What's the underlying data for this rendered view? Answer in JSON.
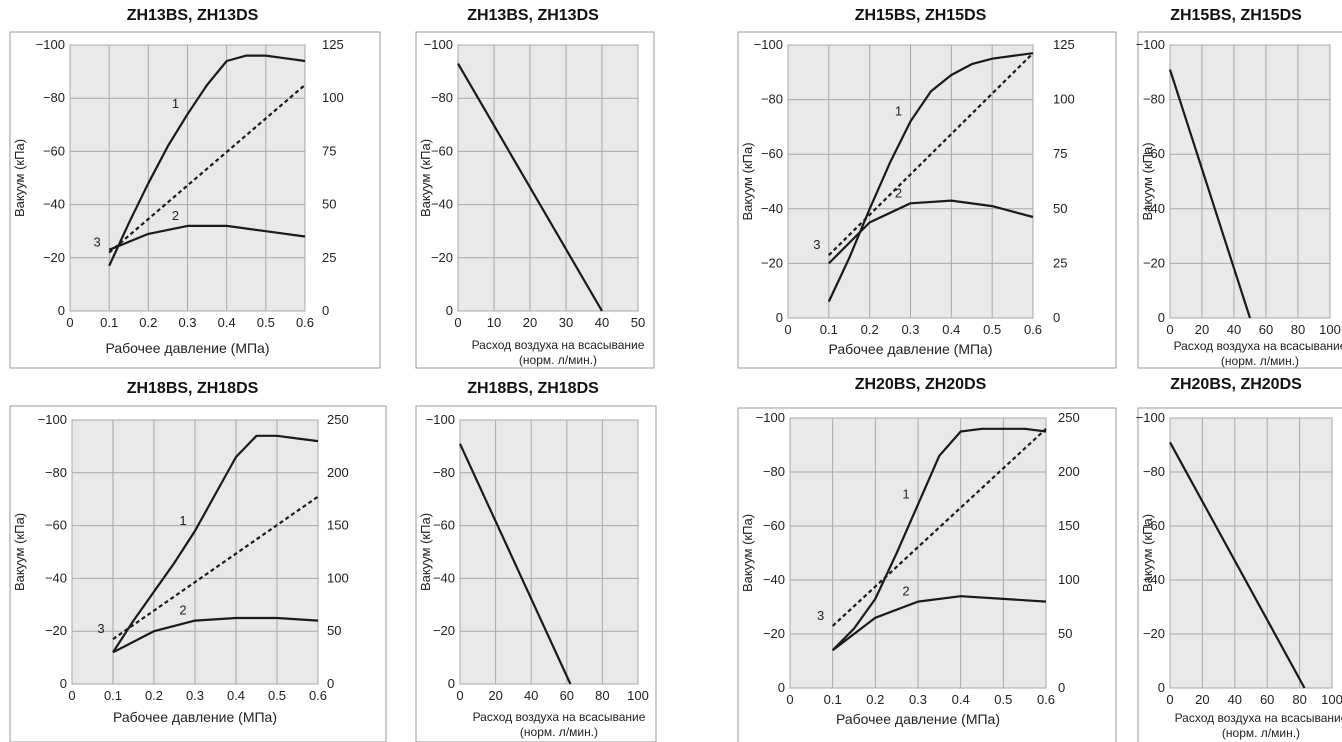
{
  "chart_data": [
    {
      "type": "line",
      "title": "ZH13BS, ZH13DS",
      "xlabel": "Рабочее давление (МПа)",
      "ylabel": "Вакуум (кПа)",
      "xlim": [
        0,
        0.6
      ],
      "x_ticks": [
        "0",
        "0.1",
        "0.2",
        "0.3",
        "0.4",
        "0.5",
        "0.6"
      ],
      "ylim": [
        0,
        -100
      ],
      "y_ticks": [
        "0",
        "−20",
        "−40",
        "−60",
        "−80",
        "−100"
      ],
      "y2lim": [
        0,
        125
      ],
      "y2_ticks": [
        "0",
        "25",
        "50",
        "75",
        "100",
        "125"
      ],
      "grid": true,
      "series": [
        {
          "name": "1",
          "style": "solid",
          "axis": "left",
          "x": [
            0.1,
            0.15,
            0.2,
            0.25,
            0.3,
            0.35,
            0.4,
            0.45,
            0.5,
            0.55,
            0.6
          ],
          "y": [
            -17,
            -33,
            -48,
            -62,
            -74,
            -85,
            -94,
            -96,
            -96,
            -95,
            -94
          ]
        },
        {
          "name": "2",
          "style": "solid",
          "axis": "left",
          "x": [
            0.1,
            0.2,
            0.3,
            0.4,
            0.5,
            0.6
          ],
          "y": [
            -23,
            -29,
            -32,
            -32,
            -30,
            -28
          ]
        },
        {
          "name": "3",
          "style": "dashed",
          "axis": "left",
          "x": [
            0.1,
            0.6
          ],
          "y": [
            -22,
            -85
          ]
        }
      ]
    },
    {
      "type": "line",
      "title": "ZH13BS, ZH13DS",
      "xlabel": "Расход воздуха на всасывание",
      "xlabel2": "(норм. л/мин.)",
      "ylabel": "Вакуум (кПа)",
      "xlim": [
        0,
        50
      ],
      "x_ticks": [
        "0",
        "10",
        "20",
        "30",
        "40",
        "50"
      ],
      "ylim": [
        0,
        -100
      ],
      "y_ticks": [
        "0",
        "−20",
        "−40",
        "−60",
        "−80",
        "−100"
      ],
      "grid": true,
      "series": [
        {
          "style": "solid",
          "x": [
            0,
            40
          ],
          "y": [
            -93,
            0
          ]
        }
      ]
    },
    {
      "type": "line",
      "title": "ZH15BS, ZH15DS",
      "xlabel": "Рабочее давление (МПа)",
      "ylabel": "Вакуум (кПа)",
      "xlim": [
        0,
        0.6
      ],
      "x_ticks": [
        "0",
        "0.1",
        "0.2",
        "0.3",
        "0.4",
        "0.5",
        "0.6"
      ],
      "ylim": [
        0,
        -100
      ],
      "y_ticks": [
        "0",
        "−20",
        "−40",
        "−60",
        "−80",
        "−100"
      ],
      "y2lim": [
        0,
        125
      ],
      "y2_ticks": [
        "0",
        "25",
        "50",
        "75",
        "100",
        "125"
      ],
      "grid": true,
      "series": [
        {
          "name": "1",
          "style": "solid",
          "axis": "left",
          "x": [
            0.1,
            0.15,
            0.2,
            0.25,
            0.3,
            0.35,
            0.4,
            0.45,
            0.5,
            0.55,
            0.6
          ],
          "y": [
            -6,
            -22,
            -40,
            -57,
            -72,
            -83,
            -89,
            -93,
            -95,
            -96,
            -97
          ]
        },
        {
          "name": "2",
          "style": "solid",
          "axis": "left",
          "x": [
            0.1,
            0.2,
            0.3,
            0.4,
            0.5,
            0.6
          ],
          "y": [
            -20,
            -35,
            -42,
            -43,
            -41,
            -37
          ]
        },
        {
          "name": "3",
          "style": "dashed",
          "axis": "left",
          "x": [
            0.1,
            0.6
          ],
          "y": [
            -23,
            -97
          ]
        }
      ]
    },
    {
      "type": "line",
      "title": "ZH15BS, ZH15DS",
      "xlabel": "Расход воздуха на всасывание",
      "xlabel2": "(норм. л/мин.)",
      "ylabel": "Вакуум (кПа)",
      "xlim": [
        0,
        100
      ],
      "x_ticks": [
        "0",
        "20",
        "40",
        "60",
        "80",
        "100"
      ],
      "ylim": [
        0,
        -100
      ],
      "y_ticks": [
        "0",
        "−20",
        "−40",
        "−60",
        "−80",
        "−100"
      ],
      "grid": true,
      "series": [
        {
          "style": "solid",
          "x": [
            0,
            50
          ],
          "y": [
            -91,
            0
          ]
        }
      ]
    },
    {
      "type": "line",
      "title": "ZH18BS, ZH18DS",
      "xlabel": "Рабочее давление (МПа)",
      "ylabel": "Вакуум (кПа)",
      "xlim": [
        0,
        0.6
      ],
      "x_ticks": [
        "0",
        "0.1",
        "0.2",
        "0.3",
        "0.4",
        "0.5",
        "0.6"
      ],
      "ylim": [
        0,
        -100
      ],
      "y_ticks": [
        "0",
        "−20",
        "−40",
        "−60",
        "−80",
        "−100"
      ],
      "y2lim": [
        0,
        250
      ],
      "y2_ticks": [
        "0",
        "50",
        "100",
        "150",
        "200",
        "250"
      ],
      "grid": true,
      "series": [
        {
          "name": "1",
          "style": "solid",
          "axis": "left",
          "x": [
            0.1,
            0.15,
            0.2,
            0.25,
            0.3,
            0.35,
            0.4,
            0.45,
            0.5,
            0.55,
            0.6
          ],
          "y": [
            -12,
            -24,
            -35,
            -46,
            -58,
            -72,
            -86,
            -94,
            -94,
            -93,
            -92
          ]
        },
        {
          "name": "2",
          "style": "solid",
          "axis": "left",
          "x": [
            0.1,
            0.2,
            0.3,
            0.4,
            0.5,
            0.6
          ],
          "y": [
            -12,
            -20,
            -24,
            -25,
            -25,
            -24
          ]
        },
        {
          "name": "3",
          "style": "dashed",
          "axis": "left",
          "x": [
            0.1,
            0.6
          ],
          "y": [
            -17,
            -71
          ]
        }
      ]
    },
    {
      "type": "line",
      "title": "ZH18BS, ZH18DS",
      "xlabel": "Расход воздуха на всасывание",
      "xlabel2": "(норм. л/мин.)",
      "ylabel": "Вакуум (кПа)",
      "xlim": [
        0,
        100
      ],
      "x_ticks": [
        "0",
        "20",
        "40",
        "60",
        "80",
        "100"
      ],
      "ylim": [
        0,
        -100
      ],
      "y_ticks": [
        "0",
        "−20",
        "−40",
        "−60",
        "−80",
        "−100"
      ],
      "grid": true,
      "series": [
        {
          "style": "solid",
          "x": [
            0,
            62
          ],
          "y": [
            -91,
            0
          ]
        }
      ]
    },
    {
      "type": "line",
      "title": "ZH20BS, ZH20DS",
      "xlabel": "Рабочее давление (МПа)",
      "ylabel": "Вакуум (кПа)",
      "xlim": [
        0,
        0.6
      ],
      "x_ticks": [
        "0",
        "0.1",
        "0.2",
        "0.3",
        "0.4",
        "0.5",
        "0.6"
      ],
      "ylim": [
        0,
        -100
      ],
      "y_ticks": [
        "0",
        "−20",
        "−40",
        "−60",
        "−80",
        "−100"
      ],
      "y2lim": [
        0,
        250
      ],
      "y2_ticks": [
        "0",
        "50",
        "100",
        "150",
        "200",
        "250"
      ],
      "grid": true,
      "series": [
        {
          "name": "1",
          "style": "solid",
          "axis": "left",
          "x": [
            0.1,
            0.15,
            0.2,
            0.25,
            0.3,
            0.35,
            0.4,
            0.45,
            0.5,
            0.55,
            0.6
          ],
          "y": [
            -14,
            -22,
            -33,
            -50,
            -68,
            -86,
            -95,
            -96,
            -96,
            -96,
            -95
          ]
        },
        {
          "name": "2",
          "style": "solid",
          "axis": "left",
          "x": [
            0.1,
            0.2,
            0.3,
            0.4,
            0.5,
            0.6
          ],
          "y": [
            -14,
            -26,
            -32,
            -34,
            -33,
            -32
          ]
        },
        {
          "name": "3",
          "style": "dashed",
          "axis": "left",
          "x": [
            0.1,
            0.6
          ],
          "y": [
            -23,
            -96
          ]
        }
      ]
    },
    {
      "type": "line",
      "title": "ZH20BS, ZH20DS",
      "xlabel": "Расход воздуха на всасывание",
      "xlabel2": "(норм. л/мин.)",
      "ylabel": "Вакуум (кПа)",
      "xlim": [
        0,
        100
      ],
      "x_ticks": [
        "0",
        "20",
        "40",
        "60",
        "80",
        "100"
      ],
      "ylim": [
        0,
        -100
      ],
      "y_ticks": [
        "0",
        "−20",
        "−40",
        "−60",
        "−80",
        "−100"
      ],
      "grid": true,
      "series": [
        {
          "style": "solid",
          "x": [
            0,
            83
          ],
          "y": [
            -91,
            0
          ]
        }
      ]
    }
  ],
  "colors": {
    "plot_bg": "#e9e9e9",
    "grid": "#a8a8a8",
    "line": "#1a1a1a",
    "frame": "#9a9a9a"
  }
}
